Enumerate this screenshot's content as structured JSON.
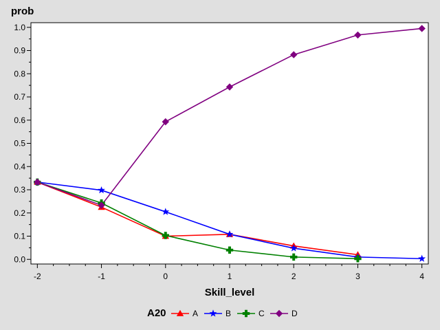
{
  "chart_data": {
    "type": "line",
    "title": "",
    "xlabel": "Skill_level",
    "ylabel": "prob",
    "x": [
      -2,
      -1,
      0,
      1,
      2,
      3,
      4
    ],
    "xlim": [
      -2.1,
      4.1
    ],
    "ylim": [
      -0.02,
      1.02
    ],
    "x_ticks": [
      -2,
      -1,
      0,
      1,
      2,
      3,
      4
    ],
    "x_tick_labels": [
      "-2",
      "-1",
      "0",
      "1",
      "2",
      "3",
      "4"
    ],
    "y_ticks": [
      0.0,
      0.1,
      0.2,
      0.3,
      0.4,
      0.5,
      0.6,
      0.7,
      0.8,
      0.9,
      1.0
    ],
    "y_tick_labels": [
      "0.0",
      "0.1",
      "0.2",
      "0.3",
      "0.4",
      "0.5",
      "0.6",
      "0.7",
      "0.8",
      "0.9",
      "1.0"
    ],
    "grid": false,
    "legend_title": "A20",
    "legend_position": "bottom",
    "series": [
      {
        "name": "A",
        "color": "#ff0000",
        "marker": "triangle",
        "x": [
          -2,
          -1,
          0,
          1,
          2,
          3
        ],
        "values": [
          0.333,
          0.225,
          0.1,
          0.108,
          0.058,
          0.02
        ]
      },
      {
        "name": "B",
        "color": "#0000ff",
        "marker": "star",
        "x": [
          -2,
          -1,
          0,
          1,
          2,
          3,
          4
        ],
        "values": [
          0.333,
          0.298,
          0.205,
          0.108,
          0.048,
          0.01,
          0.003
        ]
      },
      {
        "name": "C",
        "color": "#008000",
        "marker": "plus",
        "x": [
          -2,
          -1,
          0,
          1,
          2,
          3
        ],
        "values": [
          0.333,
          0.243,
          0.103,
          0.04,
          0.01,
          0.003
        ]
      },
      {
        "name": "D",
        "color": "#800080",
        "marker": "diamond",
        "x": [
          -2,
          -1,
          0,
          1,
          2,
          3,
          4
        ],
        "values": [
          0.333,
          0.233,
          0.593,
          0.743,
          0.882,
          0.967,
          0.995
        ]
      }
    ]
  }
}
